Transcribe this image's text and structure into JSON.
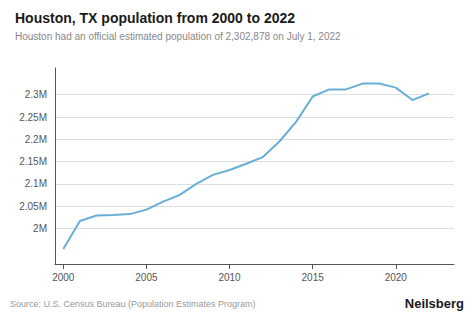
{
  "chart_data": {
    "type": "line",
    "title": "Houston, TX population from 2000 to 2022",
    "subtitle": "Houston had an official estimated population of 2,302,878 on July 1, 2022",
    "annotations": [
      "Source: U.S. Census Bureau (Population Estimates Program)",
      "Neilsberg"
    ],
    "x": [
      2000,
      2001,
      2002,
      2003,
      2004,
      2005,
      2006,
      2007,
      2008,
      2009,
      2010,
      2011,
      2012,
      2013,
      2014,
      2015,
      2016,
      2017,
      2018,
      2019,
      2020,
      2021,
      2022
    ],
    "values": [
      1953631,
      2016582,
      2029000,
      2030000,
      2032000,
      2042000,
      2060000,
      2075000,
      2100000,
      2120000,
      2131000,
      2145000,
      2160000,
      2195000,
      2239000,
      2296000,
      2312000,
      2312000,
      2325000,
      2325000,
      2316000,
      2288000,
      2302878
    ],
    "color": "#6aaed6",
    "xlim": [
      1999.5,
      2023.5
    ],
    "xticks": [
      2000,
      2005,
      2010,
      2015,
      2020
    ],
    "ylim": [
      1920000,
      2360000
    ],
    "yticks": [
      {
        "value": 2000000,
        "label": "2M"
      },
      {
        "value": 2050000,
        "label": "2.05M"
      },
      {
        "value": 2100000,
        "label": "2.1M"
      },
      {
        "value": 2150000,
        "label": "2.15M"
      },
      {
        "value": 2200000,
        "label": "2.2M"
      },
      {
        "value": 2250000,
        "label": "2.25M"
      },
      {
        "value": 2300000,
        "label": "2.3M"
      }
    ],
    "grid": true
  }
}
